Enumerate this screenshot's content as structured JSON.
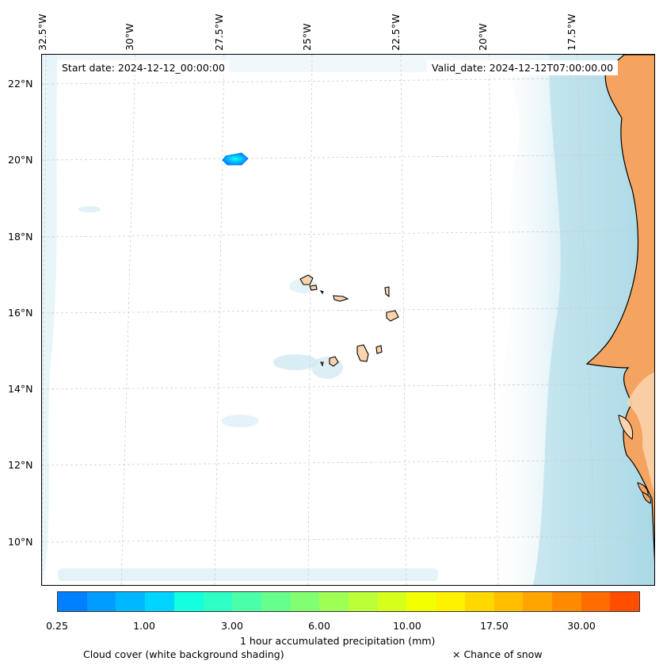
{
  "map": {
    "start_date": "Start date: 2024-12-12_00:00:00",
    "valid_date": "Valid_date: 2024-12-12T07:00:00.00",
    "longitude_labels": [
      "32.5°W",
      "30°W",
      "27.5°W",
      "25°W",
      "22.5°W",
      "20°W",
      "17.5°W"
    ],
    "latitude_labels": [
      "22°N",
      "20°N",
      "18°N",
      "16°N",
      "14°N",
      "12°N",
      "10°N"
    ]
  },
  "legend": {
    "colorbar_title": "1 hour accumulated precipitation (mm)",
    "colorbar_ticks": [
      "0.25",
      "1.00",
      "3.00",
      "6.00",
      "10.00",
      "17.50",
      "30.00"
    ],
    "colorbar_colors": [
      "#0080ff",
      "#009cff",
      "#00b8ff",
      "#00d4ff",
      "#13ffe0",
      "#2effc4",
      "#4affa8",
      "#66ff8c",
      "#82ff70",
      "#9eff54",
      "#baff38",
      "#d6ff1c",
      "#f2ff00",
      "#fff200",
      "#ffd800",
      "#ffbe00",
      "#ffa400",
      "#ff8a00",
      "#ff6c00",
      "#ff4e00"
    ],
    "cloud_cover_note": "Cloud cover (white background shading)",
    "snow_note": "× Chance of snow"
  },
  "colors": {
    "land_dry": "#f4a460",
    "land_light": "#fbd3ad",
    "cloud": "#a9d8e6",
    "grid": "#c8c8c8"
  }
}
